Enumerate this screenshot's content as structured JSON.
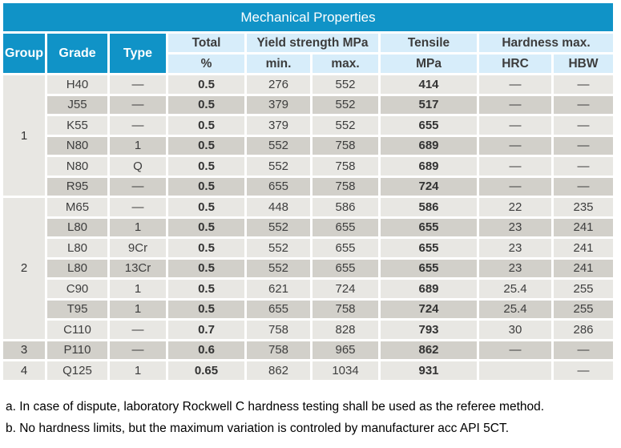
{
  "table": {
    "title": "Mechanical Properties",
    "header": {
      "group": "Group",
      "grade": "Grade",
      "type": "Type",
      "total": "Total",
      "total_unit": "%",
      "yield_strength": "Yield strength MPa",
      "yield_min": "min.",
      "yield_max": "max.",
      "tensile": "Tensile",
      "tensile_unit": "MPa",
      "hardness": "Hardness max.",
      "hrc": "HRC",
      "hbw": "HBW"
    },
    "groups": [
      {
        "group": "1",
        "rows": [
          {
            "grade": "H40",
            "type": "—",
            "total": "0.5",
            "yield_min": "276",
            "yield_max": "552",
            "tensile": "414",
            "hrc": "—",
            "hbw": "—"
          },
          {
            "grade": "J55",
            "type": "—",
            "total": "0.5",
            "yield_min": "379",
            "yield_max": "552",
            "tensile": "517",
            "hrc": "—",
            "hbw": "—"
          },
          {
            "grade": "K55",
            "type": "—",
            "total": "0.5",
            "yield_min": "379",
            "yield_max": "552",
            "tensile": "655",
            "hrc": "—",
            "hbw": "—"
          },
          {
            "grade": "N80",
            "type": "1",
            "total": "0.5",
            "yield_min": "552",
            "yield_max": "758",
            "tensile": "689",
            "hrc": "—",
            "hbw": "—"
          },
          {
            "grade": "N80",
            "type": "Q",
            "total": "0.5",
            "yield_min": "552",
            "yield_max": "758",
            "tensile": "689",
            "hrc": "—",
            "hbw": "—"
          },
          {
            "grade": "R95",
            "type": "—",
            "total": "0.5",
            "yield_min": "655",
            "yield_max": "758",
            "tensile": "724",
            "hrc": "—",
            "hbw": "—"
          }
        ]
      },
      {
        "group": "2",
        "rows": [
          {
            "grade": "M65",
            "type": "—",
            "total": "0.5",
            "yield_min": "448",
            "yield_max": "586",
            "tensile": "586",
            "hrc": "22",
            "hbw": "235"
          },
          {
            "grade": "L80",
            "type": "1",
            "total": "0.5",
            "yield_min": "552",
            "yield_max": "655",
            "tensile": "655",
            "hrc": "23",
            "hbw": "241"
          },
          {
            "grade": "L80",
            "type": "9Cr",
            "total": "0.5",
            "yield_min": "552",
            "yield_max": "655",
            "tensile": "655",
            "hrc": "23",
            "hbw": "241"
          },
          {
            "grade": "L80",
            "type": "13Cr",
            "total": "0.5",
            "yield_min": "552",
            "yield_max": "655",
            "tensile": "655",
            "hrc": "23",
            "hbw": "241"
          },
          {
            "grade": "C90",
            "type": "1",
            "total": "0.5",
            "yield_min": "621",
            "yield_max": "724",
            "tensile": "689",
            "hrc": "25.4",
            "hbw": "255"
          },
          {
            "grade": "T95",
            "type": "1",
            "total": "0.5",
            "yield_min": "655",
            "yield_max": "758",
            "tensile": "724",
            "hrc": "25.4",
            "hbw": "255"
          },
          {
            "grade": "C110",
            "type": "—",
            "total": "0.7",
            "yield_min": "758",
            "yield_max": "828",
            "tensile": "793",
            "hrc": "30",
            "hbw": "286"
          }
        ]
      },
      {
        "group": "3",
        "rows": [
          {
            "grade": "P110",
            "type": "—",
            "total": "0.6",
            "yield_min": "758",
            "yield_max": "965",
            "tensile": "862",
            "hrc": "—",
            "hbw": "—"
          }
        ]
      },
      {
        "group": "4",
        "rows": [
          {
            "grade": "Q125",
            "type": "1",
            "total": "0.65",
            "yield_min": "862",
            "yield_max": "1034",
            "tensile": "931",
            "hrc": "",
            "hbw": "—"
          }
        ]
      }
    ]
  },
  "footnotes": [
    "a. In case of dispute, laboratory Rockwell C hardness testing shall be used as the referee method.",
    "b. No hardness limits, but the maximum variation is controled by manufacturer acc API 5CT."
  ],
  "colors": {
    "header_cyan": "#1093C7",
    "subheader_blue": "#D7EDFA",
    "group_blue": "#C7E3F6",
    "row_light": "#E8E7E3",
    "row_dark": "#D2D0CA",
    "header_text": "#FFFFFF",
    "body_text": "#3E3E3E"
  }
}
